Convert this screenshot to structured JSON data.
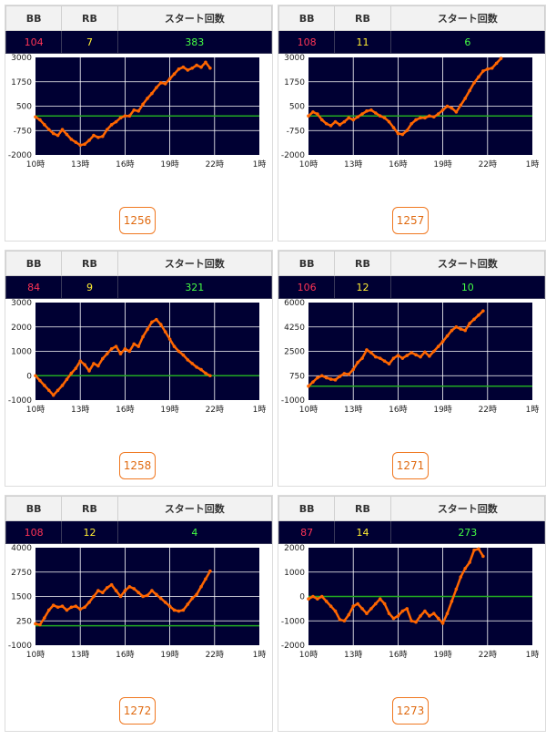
{
  "colors": {
    "plot_background": "#000033",
    "grid_line": "#ffffff",
    "zero_line": "#22aa22",
    "series": "#ff6600",
    "bb_value": "#ff3355",
    "rb_value": "#ffee33",
    "start_value": "#44ff44",
    "button_border": "#f07820"
  },
  "headers": {
    "bb": "BB",
    "rb": "RB",
    "start": "スタート回数"
  },
  "cards": [
    {
      "machine": "1256",
      "bb": "104",
      "rb": "7",
      "start": "383"
    },
    {
      "machine": "1257",
      "bb": "108",
      "rb": "11",
      "start": "6"
    },
    {
      "machine": "1258",
      "bb": "84",
      "rb": "9",
      "start": "321"
    },
    {
      "machine": "1271",
      "bb": "106",
      "rb": "12",
      "start": "10"
    },
    {
      "machine": "1272",
      "bb": "108",
      "rb": "12",
      "start": "4"
    },
    {
      "machine": "1273",
      "bb": "87",
      "rb": "14",
      "start": "273"
    }
  ],
  "chart_data": [
    {
      "type": "line",
      "x_ticks": [
        "10時",
        "13時",
        "16時",
        "19時",
        "22時",
        "1時"
      ],
      "xlim_hours": [
        10,
        25
      ],
      "y_ticks": [
        "3000",
        "1750",
        "500",
        "-750",
        "-2000"
      ],
      "ylim": [
        -2000,
        3000
      ],
      "baseline": 0,
      "grid": true,
      "series": [
        {
          "x": [
            10,
            10.3,
            10.6,
            10.9,
            11.2,
            11.5,
            11.8,
            12.1,
            12.4,
            12.7,
            13.0,
            13.3,
            13.6,
            13.9,
            14.2,
            14.5,
            14.8,
            15.1,
            15.4,
            15.7,
            16.0,
            16.3,
            16.6,
            16.9,
            17.2,
            17.5,
            17.8,
            18.1,
            18.4,
            18.7,
            19.0,
            19.3,
            19.6,
            19.9,
            20.2,
            20.5,
            20.8,
            21.1,
            21.4,
            21.7
          ],
          "values": [
            -50,
            -200,
            -450,
            -700,
            -900,
            -1000,
            -700,
            -950,
            -1200,
            -1350,
            -1500,
            -1450,
            -1250,
            -1000,
            -1100,
            -1050,
            -700,
            -450,
            -300,
            -100,
            0,
            0,
            300,
            250,
            600,
            900,
            1150,
            1450,
            1700,
            1650,
            1900,
            2150,
            2400,
            2500,
            2350,
            2450,
            2600,
            2500,
            2750,
            2450
          ]
        }
      ]
    },
    {
      "type": "line",
      "x_ticks": [
        "10時",
        "13時",
        "16時",
        "19時",
        "22時",
        "1時"
      ],
      "xlim_hours": [
        10,
        25
      ],
      "y_ticks": [
        "3000",
        "1750",
        "500",
        "-750",
        "-2000"
      ],
      "ylim": [
        -2000,
        3000
      ],
      "baseline": 0,
      "grid": true,
      "series": [
        {
          "x": [
            10,
            10.3,
            10.6,
            10.9,
            11.2,
            11.5,
            11.8,
            12.1,
            12.4,
            12.7,
            13.0,
            13.3,
            13.6,
            13.9,
            14.2,
            14.5,
            14.8,
            15.1,
            15.4,
            15.7,
            16.0,
            16.3,
            16.6,
            16.9,
            17.2,
            17.5,
            17.8,
            18.1,
            18.4,
            18.7,
            19.0,
            19.3,
            19.6,
            19.9,
            20.2,
            20.5,
            20.8,
            21.1,
            21.4,
            21.7,
            22.0,
            22.3,
            22.6,
            22.9
          ],
          "values": [
            0,
            200,
            100,
            -200,
            -400,
            -500,
            -300,
            -450,
            -300,
            -100,
            -200,
            -50,
            100,
            250,
            300,
            150,
            0,
            -100,
            -300,
            -600,
            -900,
            -950,
            -750,
            -400,
            -200,
            -100,
            -100,
            0,
            -50,
            100,
            300,
            500,
            400,
            200,
            550,
            900,
            1300,
            1700,
            2000,
            2300,
            2400,
            2450,
            2700,
            2950
          ]
        }
      ]
    },
    {
      "type": "line",
      "x_ticks": [
        "10時",
        "13時",
        "16時",
        "19時",
        "22時",
        "1時"
      ],
      "xlim_hours": [
        10,
        25
      ],
      "y_ticks": [
        "3000",
        "2000",
        "1000",
        "0",
        "-1000"
      ],
      "ylim": [
        -1000,
        3000
      ],
      "baseline": 0,
      "grid": true,
      "series": [
        {
          "x": [
            10,
            10.3,
            10.6,
            10.9,
            11.2,
            11.5,
            11.8,
            12.1,
            12.4,
            12.7,
            13.0,
            13.3,
            13.6,
            13.9,
            14.2,
            14.5,
            14.8,
            15.1,
            15.4,
            15.7,
            16.0,
            16.3,
            16.6,
            16.9,
            17.2,
            17.5,
            17.8,
            18.1,
            18.4,
            18.7,
            19.0,
            19.3,
            19.6,
            19.9,
            20.2,
            20.5,
            20.8,
            21.1,
            21.4,
            21.7
          ],
          "values": [
            0,
            -200,
            -400,
            -600,
            -800,
            -600,
            -400,
            -150,
            100,
            300,
            600,
            450,
            200,
            500,
            400,
            700,
            900,
            1100,
            1200,
            900,
            1100,
            1000,
            1300,
            1200,
            1600,
            1900,
            2200,
            2300,
            2100,
            1800,
            1500,
            1200,
            1000,
            850,
            650,
            500,
            350,
            250,
            100,
            0
          ]
        }
      ]
    },
    {
      "type": "line",
      "x_ticks": [
        "10時",
        "13時",
        "16時",
        "19時",
        "22時",
        "1時"
      ],
      "xlim_hours": [
        10,
        25
      ],
      "y_ticks": [
        "6000",
        "4250",
        "2500",
        "750",
        "-1000"
      ],
      "ylim": [
        -1000,
        6000
      ],
      "baseline": 0,
      "grid": true,
      "series": [
        {
          "x": [
            10,
            10.3,
            10.6,
            10.9,
            11.2,
            11.5,
            11.8,
            12.1,
            12.4,
            12.7,
            13.0,
            13.3,
            13.6,
            13.9,
            14.2,
            14.5,
            14.8,
            15.1,
            15.4,
            15.7,
            16.0,
            16.3,
            16.6,
            16.9,
            17.2,
            17.5,
            17.8,
            18.1,
            18.4,
            18.7,
            19.0,
            19.3,
            19.6,
            19.9,
            20.2,
            20.5,
            20.8,
            21.1,
            21.4,
            21.7
          ],
          "values": [
            0,
            300,
            600,
            750,
            600,
            500,
            450,
            700,
            900,
            850,
            1200,
            1700,
            2000,
            2600,
            2400,
            2100,
            2000,
            1800,
            1600,
            2000,
            2200,
            2000,
            2200,
            2400,
            2250,
            2100,
            2450,
            2150,
            2500,
            2850,
            3200,
            3600,
            4000,
            4250,
            4100,
            4000,
            4500,
            4800,
            5100,
            5400
          ]
        }
      ]
    },
    {
      "type": "line",
      "x_ticks": [
        "10時",
        "13時",
        "16時",
        "19時",
        "22時",
        "1時"
      ],
      "xlim_hours": [
        10,
        25
      ],
      "y_ticks": [
        "4000",
        "2750",
        "1500",
        "250",
        "-1000"
      ],
      "ylim": [
        -1000,
        4000
      ],
      "baseline": 0,
      "grid": true,
      "series": [
        {
          "x": [
            10,
            10.3,
            10.6,
            10.9,
            11.2,
            11.5,
            11.8,
            12.1,
            12.4,
            12.7,
            13.0,
            13.3,
            13.6,
            13.9,
            14.2,
            14.5,
            14.8,
            15.1,
            15.4,
            15.7,
            16.0,
            16.3,
            16.6,
            16.9,
            17.2,
            17.5,
            17.8,
            18.1,
            18.4,
            18.7,
            19.0,
            19.3,
            19.6,
            19.9,
            20.2,
            20.5,
            20.8,
            21.1,
            21.4,
            21.7
          ],
          "values": [
            100,
            50,
            400,
            800,
            1050,
            950,
            1000,
            800,
            950,
            1000,
            850,
            950,
            1200,
            1500,
            1800,
            1700,
            1950,
            2100,
            1800,
            1500,
            1800,
            2000,
            1900,
            1700,
            1500,
            1550,
            1800,
            1600,
            1400,
            1200,
            1000,
            800,
            750,
            800,
            1100,
            1400,
            1600,
            2000,
            2400,
            2800
          ]
        }
      ]
    },
    {
      "type": "line",
      "x_ticks": [
        "10時",
        "13時",
        "16時",
        "19時",
        "22時",
        "1時"
      ],
      "xlim_hours": [
        10,
        25
      ],
      "y_ticks": [
        "2000",
        "1000",
        "0",
        "-1000",
        "-2000"
      ],
      "ylim": [
        -2000,
        2000
      ],
      "baseline": 0,
      "grid": true,
      "series": [
        {
          "x": [
            10,
            10.3,
            10.6,
            10.9,
            11.2,
            11.5,
            11.8,
            12.1,
            12.4,
            12.7,
            13.0,
            13.3,
            13.6,
            13.9,
            14.2,
            14.5,
            14.8,
            15.1,
            15.4,
            15.7,
            16.0,
            16.3,
            16.6,
            16.9,
            17.2,
            17.5,
            17.8,
            18.1,
            18.4,
            18.7,
            19.0,
            19.3,
            19.6,
            19.9,
            20.2,
            20.5,
            20.8,
            21.1,
            21.4,
            21.7
          ],
          "values": [
            -100,
            0,
            -100,
            0,
            -200,
            -400,
            -600,
            -950,
            -1000,
            -750,
            -400,
            -300,
            -500,
            -700,
            -500,
            -300,
            -100,
            -300,
            -700,
            -900,
            -800,
            -600,
            -500,
            -1000,
            -1050,
            -800,
            -600,
            -800,
            -700,
            -900,
            -1100,
            -700,
            -200,
            300,
            800,
            1150,
            1400,
            1900,
            1950,
            1650
          ]
        }
      ]
    }
  ]
}
